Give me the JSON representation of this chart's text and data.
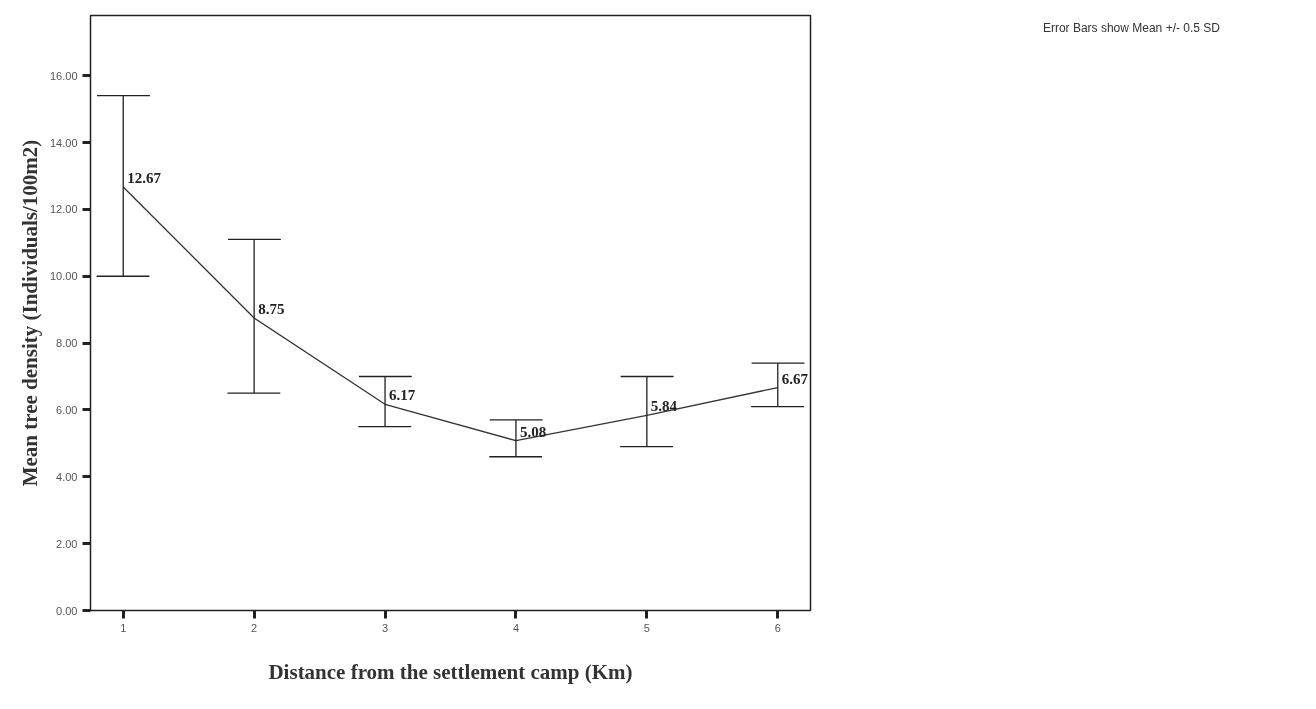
{
  "chart_data": {
    "type": "line",
    "xlabel": "Distance from the settlement camp (Km)",
    "ylabel": "Mean tree density (Individuals/100m2)",
    "x": [
      1,
      2,
      3,
      4,
      5,
      6
    ],
    "values": [
      12.67,
      8.75,
      6.17,
      5.08,
      5.84,
      6.67
    ],
    "errors": [
      [
        10.0,
        15.4
      ],
      [
        6.5,
        11.1
      ],
      [
        5.5,
        7.0
      ],
      [
        4.6,
        5.7
      ],
      [
        4.9,
        7.0
      ],
      [
        6.1,
        7.4
      ]
    ],
    "color": "#333333",
    "data_labels": true,
    "marker": "none",
    "line_style": "solid",
    "grid": false,
    "xlim": [
      0.75,
      6.25
    ],
    "ylim": [
      0,
      17.8
    ],
    "xticks": [
      1,
      2,
      3,
      4,
      5,
      6
    ],
    "yticks": [
      {
        "value": 0,
        "label": "0.00"
      },
      {
        "value": 2,
        "label": "2.00"
      },
      {
        "value": 4,
        "label": "4.00"
      },
      {
        "value": 6,
        "label": "6.00"
      },
      {
        "value": 8,
        "label": "8.00"
      },
      {
        "value": 10,
        "label": "10.00"
      },
      {
        "value": 12,
        "label": "12.00"
      },
      {
        "value": 14,
        "label": "14.00"
      },
      {
        "value": 16,
        "label": "16.00"
      }
    ],
    "annotations": [
      "Error Bars show Mean +/- 0.5 SD"
    ]
  }
}
